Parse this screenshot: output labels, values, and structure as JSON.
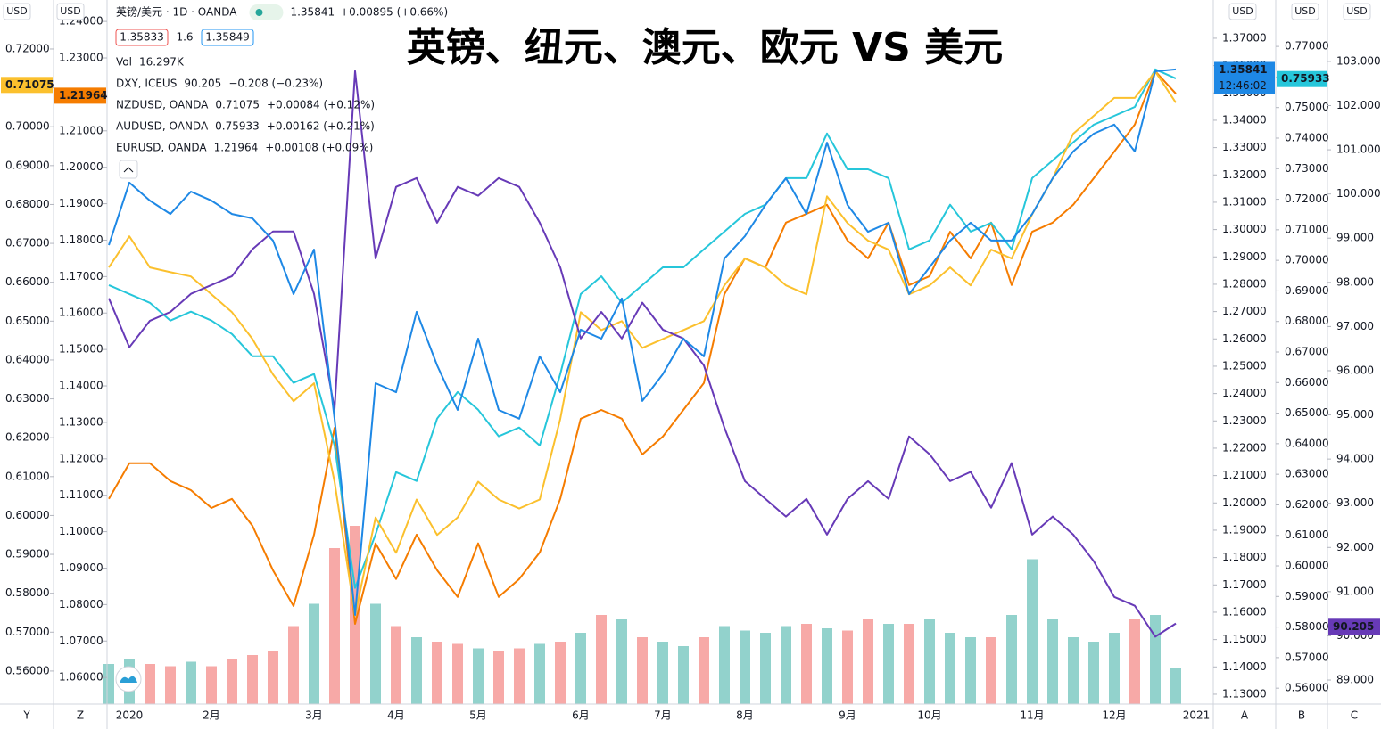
{
  "chart_data": {
    "type": "line",
    "title": "英镑、纽元、澳元、欧元 VS 美元",
    "categories": [
      null,
      "2020",
      null,
      null,
      null,
      "2月",
      null,
      null,
      null,
      null,
      "3月",
      null,
      null,
      null,
      "4月",
      null,
      null,
      null,
      "5月",
      null,
      null,
      null,
      null,
      "6月",
      null,
      null,
      null,
      "7月",
      null,
      null,
      null,
      "8月",
      null,
      null,
      null,
      null,
      "9月",
      null,
      null,
      null,
      "10月",
      null,
      null,
      null,
      null,
      "11月",
      null,
      null,
      null,
      "12月",
      null,
      null,
      null,
      "2021"
    ],
    "axes": [
      {
        "id": "Y",
        "label": "USD",
        "ylim": [
          0.5515,
          0.7326
        ],
        "yticks": [
          {
            "value": 0.56,
            "label": "0.56000"
          },
          {
            "value": 0.57,
            "label": "0.57000"
          },
          {
            "value": 0.58,
            "label": "0.58000"
          },
          {
            "value": 0.59,
            "label": "0.59000"
          },
          {
            "value": 0.6,
            "label": "0.60000"
          },
          {
            "value": 0.61,
            "label": "0.61000"
          },
          {
            "value": 0.62,
            "label": "0.62000"
          },
          {
            "value": 0.63,
            "label": "0.63000"
          },
          {
            "value": 0.64,
            "label": "0.64000"
          },
          {
            "value": 0.65,
            "label": "0.65000"
          },
          {
            "value": 0.66,
            "label": "0.66000"
          },
          {
            "value": 0.67,
            "label": "0.67000"
          },
          {
            "value": 0.68,
            "label": "0.68000"
          },
          {
            "value": 0.69,
            "label": "0.69000"
          },
          {
            "value": 0.7,
            "label": "0.70000"
          },
          {
            "value": 0.71,
            "label": "0.71000"
          },
          {
            "value": 0.72,
            "label": "0.72000"
          }
        ]
      },
      {
        "id": "Z",
        "label": "USD",
        "ylim": [
          1.0527,
          1.2459
        ],
        "yticks": [
          {
            "value": 1.06,
            "label": "1.06000"
          },
          {
            "value": 1.07,
            "label": "1.07000"
          },
          {
            "value": 1.08,
            "label": "1.08000"
          },
          {
            "value": 1.09,
            "label": "1.09000"
          },
          {
            "value": 1.1,
            "label": "1.10000"
          },
          {
            "value": 1.11,
            "label": "1.11000"
          },
          {
            "value": 1.12,
            "label": "1.12000"
          },
          {
            "value": 1.13,
            "label": "1.13000"
          },
          {
            "value": 1.14,
            "label": "1.14000"
          },
          {
            "value": 1.15,
            "label": "1.15000"
          },
          {
            "value": 1.16,
            "label": "1.16000"
          },
          {
            "value": 1.17,
            "label": "1.17000"
          },
          {
            "value": 1.18,
            "label": "1.18000"
          },
          {
            "value": 1.19,
            "label": "1.19000"
          },
          {
            "value": 1.2,
            "label": "1.20000"
          },
          {
            "value": 1.21,
            "label": "1.21000"
          },
          {
            "value": 1.22,
            "label": "1.22000"
          },
          {
            "value": 1.23,
            "label": "1.23000"
          },
          {
            "value": 1.24,
            "label": "1.24000"
          }
        ]
      },
      {
        "id": "A",
        "label": "USD",
        "ylim": [
          1.1264,
          1.384
        ],
        "yticks": [
          {
            "value": 1.13,
            "label": "1.13000"
          },
          {
            "value": 1.14,
            "label": "1.14000"
          },
          {
            "value": 1.15,
            "label": "1.15000"
          },
          {
            "value": 1.16,
            "label": "1.16000"
          },
          {
            "value": 1.17,
            "label": "1.17000"
          },
          {
            "value": 1.18,
            "label": "1.18000"
          },
          {
            "value": 1.19,
            "label": "1.19000"
          },
          {
            "value": 1.2,
            "label": "1.20000"
          },
          {
            "value": 1.21,
            "label": "1.21000"
          },
          {
            "value": 1.22,
            "label": "1.22000"
          },
          {
            "value": 1.23,
            "label": "1.23000"
          },
          {
            "value": 1.24,
            "label": "1.24000"
          },
          {
            "value": 1.25,
            "label": "1.25000"
          },
          {
            "value": 1.26,
            "label": "1.26000"
          },
          {
            "value": 1.27,
            "label": "1.27000"
          },
          {
            "value": 1.28,
            "label": "1.28000"
          },
          {
            "value": 1.29,
            "label": "1.29000"
          },
          {
            "value": 1.3,
            "label": "1.30000"
          },
          {
            "value": 1.31,
            "label": "1.31000"
          },
          {
            "value": 1.32,
            "label": "1.32000"
          },
          {
            "value": 1.33,
            "label": "1.33000"
          },
          {
            "value": 1.34,
            "label": "1.34000"
          },
          {
            "value": 1.35,
            "label": "1.35000"
          },
          {
            "value": 1.36,
            "label": "1.36000"
          },
          {
            "value": 1.37,
            "label": "1.37000"
          }
        ]
      },
      {
        "id": "B",
        "label": "USD",
        "ylim": [
          0.5548,
          0.7852
        ],
        "yticks": [
          {
            "value": 0.56,
            "label": "0.56000"
          },
          {
            "value": 0.57,
            "label": "0.57000"
          },
          {
            "value": 0.58,
            "label": "0.58000"
          },
          {
            "value": 0.59,
            "label": "0.59000"
          },
          {
            "value": 0.6,
            "label": "0.60000"
          },
          {
            "value": 0.61,
            "label": "0.61000"
          },
          {
            "value": 0.62,
            "label": "0.62000"
          },
          {
            "value": 0.63,
            "label": "0.63000"
          },
          {
            "value": 0.64,
            "label": "0.64000"
          },
          {
            "value": 0.65,
            "label": "0.65000"
          },
          {
            "value": 0.66,
            "label": "0.66000"
          },
          {
            "value": 0.67,
            "label": "0.67000"
          },
          {
            "value": 0.68,
            "label": "0.68000"
          },
          {
            "value": 0.69,
            "label": "0.69000"
          },
          {
            "value": 0.7,
            "label": "0.70000"
          },
          {
            "value": 0.71,
            "label": "0.71000"
          },
          {
            "value": 0.72,
            "label": "0.72000"
          },
          {
            "value": 0.73,
            "label": "0.73000"
          },
          {
            "value": 0.74,
            "label": "0.74000"
          },
          {
            "value": 0.75,
            "label": "0.75000"
          },
          {
            "value": 0.76,
            "label": "0.76000"
          },
          {
            "value": 0.77,
            "label": "0.77000"
          }
        ]
      },
      {
        "id": "C",
        "label": "USD",
        "ylim": [
          88.456,
          104.39
        ],
        "yticks": [
          {
            "value": 89,
            "label": "89.000"
          },
          {
            "value": 90,
            "label": "90.000"
          },
          {
            "value": 91,
            "label": "91.000"
          },
          {
            "value": 92,
            "label": "92.000"
          },
          {
            "value": 93,
            "label": "93.000"
          },
          {
            "value": 94,
            "label": "94.000"
          },
          {
            "value": 95,
            "label": "95.000"
          },
          {
            "value": 96,
            "label": "96.000"
          },
          {
            "value": 97,
            "label": "97.000"
          },
          {
            "value": 98,
            "label": "98.000"
          },
          {
            "value": 99,
            "label": "99.000"
          },
          {
            "value": 100,
            "label": "100.000"
          },
          {
            "value": 101,
            "label": "101.000"
          },
          {
            "value": 102,
            "label": "102.000"
          },
          {
            "value": 103,
            "label": "103.000"
          }
        ]
      }
    ],
    "series": [
      {
        "name": "英镑/美元 · 1D · OANDA",
        "color": "#1e88e5",
        "axis": 2,
        "last": 1.35841,
        "change": "+0.00895 (+0.66%)",
        "values": [
          1.2943,
          1.3172,
          1.3106,
          1.3057,
          1.3139,
          1.3106,
          1.3057,
          1.3041,
          1.296,
          1.2764,
          1.2927,
          1.2308,
          1.159,
          1.2438,
          1.2405,
          1.2699,
          1.2503,
          1.234,
          1.2601,
          1.234,
          1.2308,
          1.2536,
          1.2405,
          1.2634,
          1.2601,
          1.2748,
          1.2373,
          1.2471,
          1.2601,
          1.2536,
          1.2894,
          1.2976,
          1.309,
          1.3188,
          1.3057,
          1.3318,
          1.309,
          1.2992,
          1.3025,
          1.2764,
          1.2862,
          1.296,
          1.3025,
          1.296,
          1.296,
          1.3057,
          1.3188,
          1.3286,
          1.3351,
          1.3384,
          1.3286,
          1.3579,
          1.3586,
          null
        ]
      },
      {
        "name": "DXY, ICEUS",
        "color": "#673ab7",
        "axis": 4,
        "last": 90.205,
        "change": "−0.208 (−0.23%)",
        "values": [
          97.64,
          96.53,
          97.13,
          97.33,
          97.74,
          97.94,
          98.14,
          98.75,
          99.15,
          99.15,
          97.74,
          95.12,
          102.78,
          98.54,
          100.16,
          100.36,
          99.35,
          100.16,
          99.96,
          100.36,
          100.16,
          99.35,
          98.34,
          96.73,
          97.33,
          96.73,
          97.54,
          96.93,
          96.73,
          96.12,
          94.71,
          93.5,
          93.1,
          92.7,
          93.1,
          92.29,
          93.1,
          93.5,
          93.1,
          94.51,
          94.11,
          93.5,
          93.71,
          92.9,
          93.91,
          92.29,
          92.7,
          92.29,
          91.69,
          90.88,
          90.68,
          89.98,
          90.28,
          null
        ]
      },
      {
        "name": "NZDUSD, OANDA",
        "color": "#fbc02d",
        "axis": 0,
        "last": 0.71075,
        "change": "+0.00084 (+0.12%)",
        "values": [
          0.6638,
          0.6718,
          0.6638,
          0.6626,
          0.6615,
          0.6569,
          0.6523,
          0.6454,
          0.6363,
          0.6294,
          0.634,
          0.6087,
          0.5743,
          0.5995,
          0.5904,
          0.6041,
          0.595,
          0.5995,
          0.6087,
          0.6041,
          0.6018,
          0.6041,
          0.6248,
          0.6523,
          0.6477,
          0.65,
          0.6431,
          0.6454,
          0.6477,
          0.65,
          0.6592,
          0.6661,
          0.6638,
          0.6592,
          0.6569,
          0.6821,
          0.6752,
          0.6707,
          0.6684,
          0.6569,
          0.6592,
          0.6638,
          0.6592,
          0.6684,
          0.6661,
          0.6775,
          0.6867,
          0.6982,
          0.7028,
          0.7074,
          0.7074,
          0.7142,
          0.7062,
          null
        ]
      },
      {
        "name": "AUDUSD, OANDA",
        "color": "#26c6da",
        "axis": 3,
        "last": 0.75933,
        "change": "+0.00162 (+0.21%)",
        "values": [
          0.6919,
          0.689,
          0.6861,
          0.6803,
          0.6832,
          0.6803,
          0.6759,
          0.6686,
          0.6686,
          0.6599,
          0.6628,
          0.6394,
          0.5928,
          0.6103,
          0.6307,
          0.6278,
          0.6482,
          0.6569,
          0.6511,
          0.6424,
          0.6453,
          0.6394,
          0.6628,
          0.689,
          0.6948,
          0.6861,
          0.6919,
          0.6977,
          0.6977,
          0.7036,
          0.7094,
          0.7152,
          0.7182,
          0.7269,
          0.7269,
          0.7415,
          0.7298,
          0.7298,
          0.7269,
          0.7036,
          0.7065,
          0.7182,
          0.7094,
          0.7123,
          0.7036,
          0.7269,
          0.7327,
          0.7386,
          0.7444,
          0.7473,
          0.7502,
          0.7625,
          0.7595,
          null
        ]
      },
      {
        "name": "EURUSD, OANDA",
        "color": "#f57c00",
        "axis": 1,
        "last": 1.21964,
        "change": "+0.00108 (+0.09%)",
        "values": [
          1.109,
          1.1188,
          1.1188,
          1.1139,
          1.1114,
          1.1065,
          1.109,
          1.1016,
          1.0894,
          1.0796,
          1.0992,
          1.1285,
          1.0747,
          1.0968,
          1.087,
          1.0992,
          1.0894,
          1.0821,
          1.0968,
          1.0821,
          1.087,
          1.0943,
          1.109,
          1.131,
          1.1334,
          1.131,
          1.1212,
          1.1261,
          1.1334,
          1.1408,
          1.1652,
          1.175,
          1.1725,
          1.1848,
          1.1872,
          1.1897,
          1.1799,
          1.175,
          1.1848,
          1.1677,
          1.1701,
          1.1823,
          1.175,
          1.1848,
          1.1677,
          1.1823,
          1.1848,
          1.1897,
          1.197,
          1.2043,
          1.2117,
          1.2263,
          1.2202,
          null
        ]
      }
    ],
    "quote": {
      "bid": 1.35833,
      "spread": 1.6,
      "ask": 1.35849,
      "countdown": "12:46:02"
    },
    "volume": {
      "name": "Vol",
      "last_label": "16.297K",
      "up_color": "#26a69a",
      "down_color": "#ef5350",
      "values": [
        18,
        20,
        18,
        17,
        19,
        17,
        20,
        22,
        24,
        35,
        45,
        70,
        80,
        45,
        35,
        30,
        28,
        27,
        25,
        24,
        25,
        27,
        28,
        32,
        40,
        38,
        30,
        28,
        26,
        30,
        35,
        33,
        32,
        35,
        36,
        34,
        33,
        38,
        36,
        36,
        38,
        32,
        30,
        30,
        40,
        65,
        38,
        30,
        28,
        32,
        38,
        40,
        16.297,
        null
      ]
    }
  }
}
